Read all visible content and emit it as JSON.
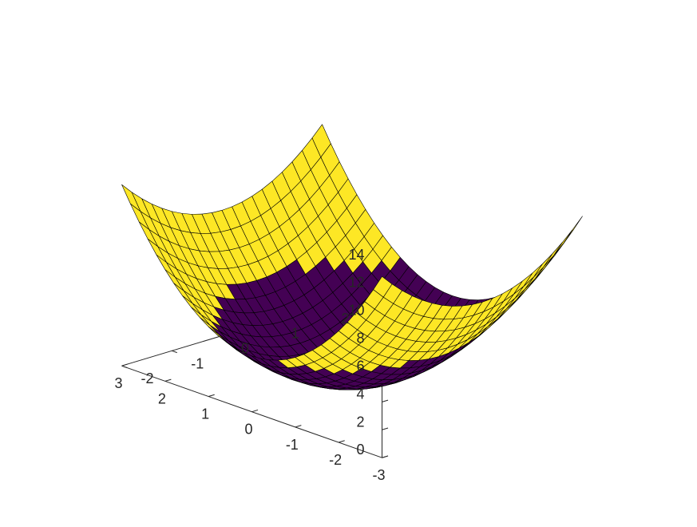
{
  "chart_data": {
    "type": "surface",
    "title": "",
    "xlabel": "",
    "ylabel": "",
    "zlabel": "",
    "function": "z = x^2 + y^2",
    "x": {
      "min": -3,
      "max": 3,
      "steps": 30
    },
    "y": {
      "min": -2,
      "max": 2,
      "steps": 20
    },
    "zlim": [
      0,
      14
    ],
    "x_ticks": [
      "-3",
      "-2",
      "-1",
      "0",
      "1",
      "2",
      "3"
    ],
    "y_ticks": [
      "-2",
      "-1",
      "0",
      "1",
      "2"
    ],
    "z_ticks": [
      "0",
      "2",
      "4",
      "6",
      "8",
      "10",
      "12",
      "14"
    ],
    "colormap": {
      "low": "#440154",
      "high": "#fde725",
      "threshold": 4.5
    },
    "edge_color": "#000000",
    "grid": false
  }
}
